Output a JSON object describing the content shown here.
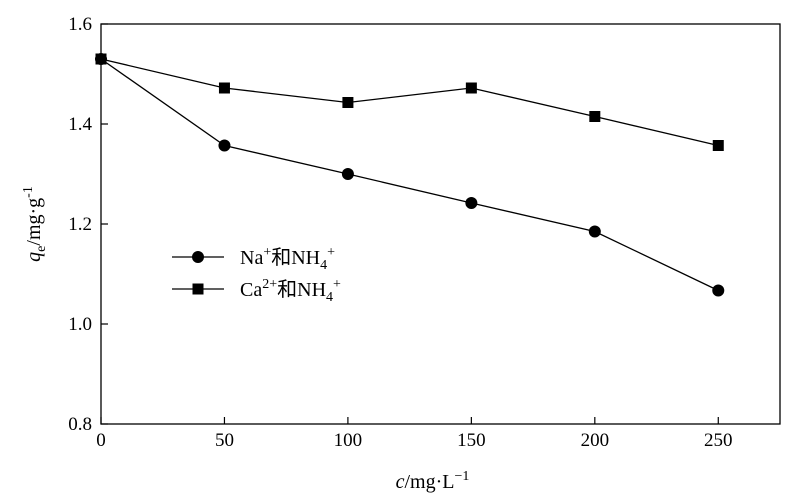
{
  "chart_data": {
    "type": "line",
    "xlabel": {
      "var": "c",
      "unit": "/mg·L",
      "exp": "−1"
    },
    "ylabel": {
      "var": "q",
      "sub": "e",
      "unit": "/mg·g",
      "exp": "-1"
    },
    "xlim": [
      0,
      275
    ],
    "ylim": [
      0.8,
      1.6
    ],
    "x_ticks": [
      0,
      50,
      100,
      150,
      200,
      250
    ],
    "x_tick_labels": [
      "0",
      "50",
      "100",
      "150",
      "200",
      "250"
    ],
    "y_ticks": [
      0.8,
      1.0,
      1.2,
      1.4,
      1.6
    ],
    "y_tick_labels": [
      "0.8",
      "1.0",
      "1.2",
      "1.4",
      "1.6"
    ],
    "grid": false,
    "legend_position": "center-left",
    "x": [
      0,
      50,
      100,
      150,
      200,
      250
    ],
    "series": [
      {
        "name": "Na⁺和NH₄⁺",
        "legend": {
          "pre": "Na",
          "pre_sup": "+",
          "mid": "和NH",
          "sub": "4",
          "post_sup": "+"
        },
        "marker": "circle",
        "color": "#000000",
        "values": [
          1.53,
          1.357,
          1.3,
          1.242,
          1.185,
          1.067
        ]
      },
      {
        "name": "Ca²⁺和NH₄⁺",
        "legend": {
          "pre": "Ca",
          "pre_sup": "2+",
          "mid": "和NH",
          "sub": "4",
          "post_sup": "+"
        },
        "marker": "square",
        "color": "#000000",
        "values": [
          1.53,
          1.472,
          1.443,
          1.472,
          1.415,
          1.357
        ]
      }
    ]
  }
}
